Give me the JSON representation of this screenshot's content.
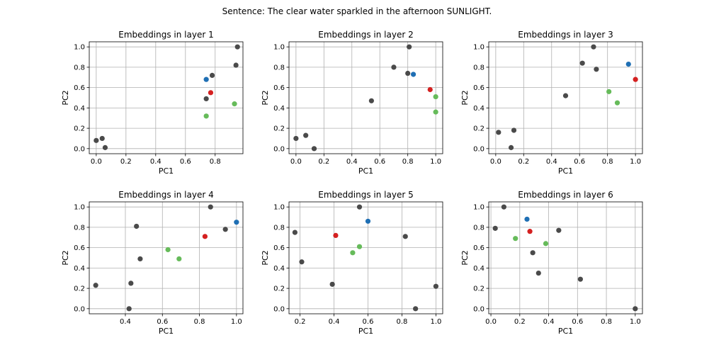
{
  "figure": {
    "suptitle": "Sentence: The clear water sparkled in the afternoon SUNLIGHT."
  },
  "colors": {
    "other": "#4a4a4a",
    "blue": "#1f6fb4",
    "red": "#d42020",
    "green": "#66bb5a",
    "grid": "#b0b0b0"
  },
  "chart_data": [
    {
      "type": "scatter",
      "title": "Embeddings in layer 1",
      "xlabel": "PC1",
      "ylabel": "PC2",
      "xlim": [
        -0.047,
        0.987
      ],
      "ylim": [
        -0.05,
        1.05
      ],
      "xticks": [
        0.0,
        0.2,
        0.4,
        0.6,
        0.8
      ],
      "yticks": [
        0.0,
        0.2,
        0.4,
        0.6,
        0.8,
        1.0
      ],
      "grid": true,
      "points": [
        {
          "x": 0.0,
          "y": 0.08,
          "c": "other"
        },
        {
          "x": 0.04,
          "y": 0.1,
          "c": "other"
        },
        {
          "x": 0.06,
          "y": 0.01,
          "c": "other"
        },
        {
          "x": 0.74,
          "y": 0.49,
          "c": "other"
        },
        {
          "x": 0.78,
          "y": 0.72,
          "c": "other"
        },
        {
          "x": 0.94,
          "y": 0.82,
          "c": "other"
        },
        {
          "x": 0.95,
          "y": 1.0,
          "c": "other"
        },
        {
          "x": 0.74,
          "y": 0.68,
          "c": "blue"
        },
        {
          "x": 0.77,
          "y": 0.55,
          "c": "red"
        },
        {
          "x": 0.74,
          "y": 0.32,
          "c": "green"
        },
        {
          "x": 0.93,
          "y": 0.44,
          "c": "green"
        }
      ]
    },
    {
      "type": "scatter",
      "title": "Embeddings in layer 2",
      "xlabel": "PC1",
      "ylabel": "PC2",
      "xlim": [
        -0.05,
        1.05
      ],
      "ylim": [
        -0.05,
        1.05
      ],
      "xticks": [
        0.0,
        0.2,
        0.4,
        0.6,
        0.8,
        1.0
      ],
      "yticks": [
        0.0,
        0.2,
        0.4,
        0.6,
        0.8,
        1.0
      ],
      "grid": true,
      "points": [
        {
          "x": 0.0,
          "y": 0.1,
          "c": "other"
        },
        {
          "x": 0.07,
          "y": 0.13,
          "c": "other"
        },
        {
          "x": 0.13,
          "y": 0.0,
          "c": "other"
        },
        {
          "x": 0.54,
          "y": 0.47,
          "c": "other"
        },
        {
          "x": 0.7,
          "y": 0.8,
          "c": "other"
        },
        {
          "x": 0.8,
          "y": 0.74,
          "c": "other"
        },
        {
          "x": 0.81,
          "y": 1.0,
          "c": "other"
        },
        {
          "x": 0.84,
          "y": 0.73,
          "c": "blue"
        },
        {
          "x": 0.96,
          "y": 0.58,
          "c": "red"
        },
        {
          "x": 1.0,
          "y": 0.51,
          "c": "green"
        },
        {
          "x": 1.0,
          "y": 0.36,
          "c": "green"
        }
      ]
    },
    {
      "type": "scatter",
      "title": "Embeddings in layer 3",
      "xlabel": "PC1",
      "ylabel": "PC2",
      "xlim": [
        -0.05,
        1.05
      ],
      "ylim": [
        -0.05,
        1.05
      ],
      "xticks": [
        0.0,
        0.2,
        0.4,
        0.6,
        0.8,
        1.0
      ],
      "yticks": [
        0.0,
        0.2,
        0.4,
        0.6,
        0.8,
        1.0
      ],
      "grid": true,
      "points": [
        {
          "x": 0.02,
          "y": 0.16,
          "c": "other"
        },
        {
          "x": 0.11,
          "y": 0.01,
          "c": "other"
        },
        {
          "x": 0.13,
          "y": 0.18,
          "c": "other"
        },
        {
          "x": 0.5,
          "y": 0.52,
          "c": "other"
        },
        {
          "x": 0.62,
          "y": 0.84,
          "c": "other"
        },
        {
          "x": 0.7,
          "y": 1.0,
          "c": "other"
        },
        {
          "x": 0.72,
          "y": 0.78,
          "c": "other"
        },
        {
          "x": 0.95,
          "y": 0.83,
          "c": "blue"
        },
        {
          "x": 1.0,
          "y": 0.68,
          "c": "red"
        },
        {
          "x": 0.81,
          "y": 0.56,
          "c": "green"
        },
        {
          "x": 0.87,
          "y": 0.45,
          "c": "green"
        }
      ]
    },
    {
      "type": "scatter",
      "title": "Embeddings in layer 4",
      "xlabel": "PC1",
      "ylabel": "PC2",
      "xlim": [
        0.205,
        1.035
      ],
      "ylim": [
        -0.05,
        1.05
      ],
      "xticks": [
        0.4,
        0.6,
        0.8,
        1.0
      ],
      "yticks": [
        0.0,
        0.2,
        0.4,
        0.6,
        0.8,
        1.0
      ],
      "grid": true,
      "points": [
        {
          "x": 0.24,
          "y": 0.23,
          "c": "other"
        },
        {
          "x": 0.42,
          "y": 0.0,
          "c": "other"
        },
        {
          "x": 0.43,
          "y": 0.25,
          "c": "other"
        },
        {
          "x": 0.46,
          "y": 0.81,
          "c": "other"
        },
        {
          "x": 0.48,
          "y": 0.49,
          "c": "other"
        },
        {
          "x": 0.86,
          "y": 1.0,
          "c": "other"
        },
        {
          "x": 0.94,
          "y": 0.78,
          "c": "other"
        },
        {
          "x": 1.0,
          "y": 0.85,
          "c": "blue"
        },
        {
          "x": 0.83,
          "y": 0.71,
          "c": "red"
        },
        {
          "x": 0.63,
          "y": 0.58,
          "c": "green"
        },
        {
          "x": 0.69,
          "y": 0.49,
          "c": "green"
        }
      ]
    },
    {
      "type": "scatter",
      "title": "Embeddings in layer 5",
      "xlabel": "PC1",
      "ylabel": "PC2",
      "xlim": [
        0.135,
        1.04
      ],
      "ylim": [
        -0.05,
        1.05
      ],
      "xticks": [
        0.2,
        0.4,
        0.6,
        0.8,
        1.0
      ],
      "yticks": [
        0.0,
        0.2,
        0.4,
        0.6,
        0.8,
        1.0
      ],
      "grid": true,
      "points": [
        {
          "x": 0.17,
          "y": 0.75,
          "c": "other"
        },
        {
          "x": 0.21,
          "y": 0.46,
          "c": "other"
        },
        {
          "x": 0.39,
          "y": 0.24,
          "c": "other"
        },
        {
          "x": 0.55,
          "y": 1.0,
          "c": "other"
        },
        {
          "x": 0.82,
          "y": 0.71,
          "c": "other"
        },
        {
          "x": 0.88,
          "y": 0.0,
          "c": "other"
        },
        {
          "x": 1.0,
          "y": 0.22,
          "c": "other"
        },
        {
          "x": 0.6,
          "y": 0.86,
          "c": "blue"
        },
        {
          "x": 0.41,
          "y": 0.72,
          "c": "red"
        },
        {
          "x": 0.51,
          "y": 0.55,
          "c": "green"
        },
        {
          "x": 0.55,
          "y": 0.61,
          "c": "green"
        }
      ]
    },
    {
      "type": "scatter",
      "title": "Embeddings in layer 6",
      "xlabel": "PC1",
      "ylabel": "PC2",
      "xlim": [
        -0.015,
        1.05
      ],
      "ylim": [
        -0.05,
        1.05
      ],
      "xticks": [
        0.0,
        0.2,
        0.4,
        0.6,
        0.8,
        1.0
      ],
      "yticks": [
        0.0,
        0.2,
        0.4,
        0.6,
        0.8,
        1.0
      ],
      "grid": true,
      "points": [
        {
          "x": 0.03,
          "y": 0.79,
          "c": "other"
        },
        {
          "x": 0.09,
          "y": 1.0,
          "c": "other"
        },
        {
          "x": 0.29,
          "y": 0.55,
          "c": "other"
        },
        {
          "x": 0.33,
          "y": 0.35,
          "c": "other"
        },
        {
          "x": 0.47,
          "y": 0.77,
          "c": "other"
        },
        {
          "x": 0.62,
          "y": 0.29,
          "c": "other"
        },
        {
          "x": 1.0,
          "y": 0.0,
          "c": "other"
        },
        {
          "x": 0.25,
          "y": 0.88,
          "c": "blue"
        },
        {
          "x": 0.27,
          "y": 0.76,
          "c": "red"
        },
        {
          "x": 0.17,
          "y": 0.69,
          "c": "green"
        },
        {
          "x": 0.38,
          "y": 0.64,
          "c": "green"
        }
      ]
    }
  ]
}
